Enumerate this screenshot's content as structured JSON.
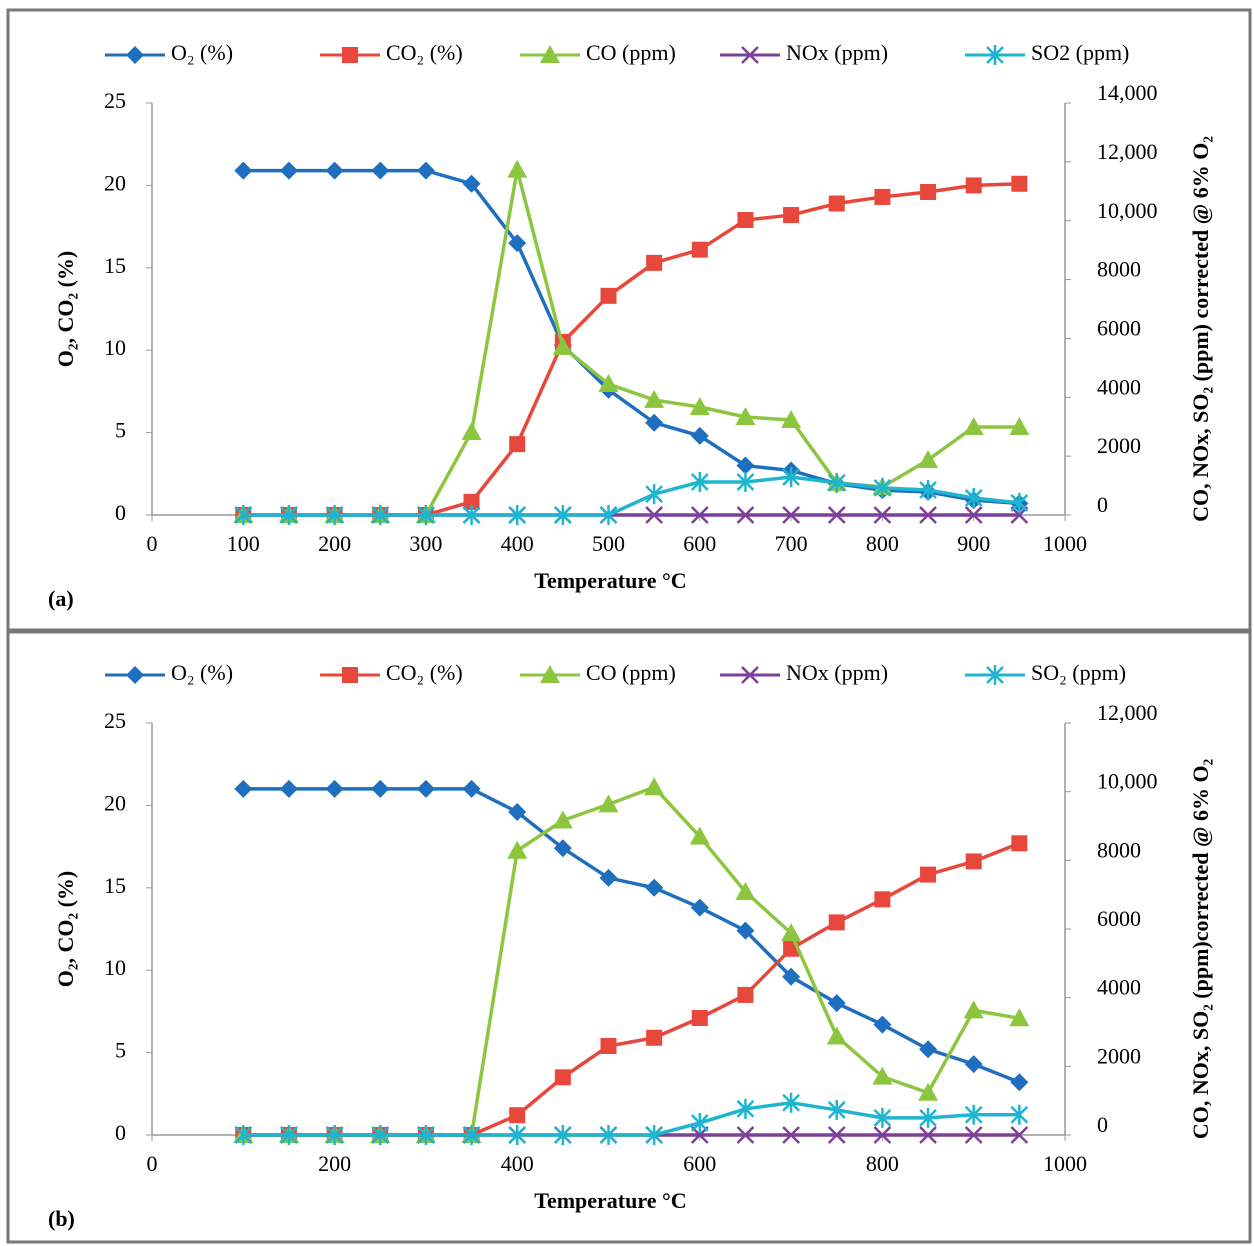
{
  "chart_data": [
    {
      "type": "line",
      "panel_label": "(a)",
      "x_label": "Temperature °C",
      "y_label": "O₂, CO₂ (%)",
      "y2_label": "CO, NOx, SO₂ (ppm) corrected @ 6% O₂",
      "x": [
        100,
        150,
        200,
        250,
        300,
        350,
        400,
        450,
        500,
        550,
        600,
        650,
        700,
        750,
        800,
        850,
        900,
        950
      ],
      "xlim": [
        0,
        1000
      ],
      "xticks": [
        0,
        100,
        200,
        300,
        400,
        500,
        600,
        700,
        800,
        900,
        1000
      ],
      "ylim": [
        0,
        25
      ],
      "yticks": [
        0,
        5,
        10,
        15,
        20,
        25
      ],
      "y2lim": [
        0,
        14000
      ],
      "y2ticks": [
        0,
        2000,
        4000,
        6000,
        8000,
        {
          "value": 10000,
          "label": "10,000"
        },
        {
          "value": 12000,
          "label": "12,000"
        },
        {
          "value": 14000,
          "label": "14,000"
        }
      ],
      "series": [
        {
          "name": "O₂ (%)",
          "color": "#1f6fbf",
          "marker": "diamond",
          "values": [
            20.9,
            20.9,
            20.9,
            20.9,
            20.9,
            20.1,
            16.5,
            10.3,
            7.6,
            5.6,
            4.8,
            3.0,
            2.7,
            1.9,
            1.5,
            1.4,
            0.9,
            0.7
          ]
        },
        {
          "name": "CO₂ (%)",
          "color": "#e8473b",
          "marker": "square",
          "values": [
            0,
            0,
            0,
            0,
            0,
            0.8,
            4.3,
            10.5,
            13.3,
            15.3,
            16.1,
            17.9,
            18.2,
            18.9,
            19.3,
            19.6,
            20.0,
            20.1
          ]
        },
        {
          "name": "CO (ppm)",
          "color": "#8cc63f",
          "marker": "triangle",
          "axis": "y2",
          "values": [
            0,
            0,
            0,
            0,
            0,
            2820,
            11730,
            5710,
            4450,
            3910,
            3670,
            3330,
            3230,
            1090,
            950,
            1870,
            2990,
            2990
          ]
        },
        {
          "name": "NOx (ppm)",
          "color": "#7d3f98",
          "marker": "x",
          "axis": "y2",
          "values": [
            0,
            0,
            0,
            0,
            0,
            0,
            0,
            0,
            0,
            0,
            0,
            0,
            0,
            0,
            0,
            0,
            0,
            0
          ]
        },
        {
          "name": "SO2 (ppm)",
          "color": "#1fb5d0",
          "marker": "star",
          "axis": "y2",
          "values": [
            0,
            0,
            0,
            0,
            0,
            0,
            0,
            0,
            0,
            710,
            1120,
            1120,
            1290,
            1090,
            920,
            850,
            580,
            410
          ]
        }
      ]
    },
    {
      "type": "line",
      "panel_label": "(b)",
      "x_label": "Temperature °C",
      "y_label": "O₂, CO₂ (%)",
      "y2_label": "CO, NOx, SO₂ (ppm)corrected @ 6% O₂",
      "x": [
        100,
        150,
        200,
        250,
        300,
        350,
        400,
        450,
        500,
        550,
        600,
        650,
        700,
        750,
        800,
        850,
        900,
        950
      ],
      "xlim": [
        0,
        1000
      ],
      "xticks": [
        0,
        200,
        400,
        600,
        800,
        1000
      ],
      "ylim": [
        0,
        25
      ],
      "yticks": [
        0,
        5,
        10,
        15,
        20,
        25
      ],
      "y2lim": [
        0,
        12000
      ],
      "y2ticks": [
        0,
        2000,
        4000,
        6000,
        8000,
        {
          "value": 10000,
          "label": "10,000"
        },
        {
          "value": 12000,
          "label": "12,000"
        }
      ],
      "series": [
        {
          "name": "O₂ (%)",
          "color": "#1f6fbf",
          "marker": "diamond",
          "values": [
            21,
            21,
            21,
            21,
            21,
            21,
            19.6,
            17.4,
            15.6,
            15.0,
            13.8,
            12.4,
            9.6,
            8.0,
            6.7,
            5.2,
            4.3,
            3.2
          ]
        },
        {
          "name": "CO₂ (%)",
          "color": "#e8473b",
          "marker": "square",
          "values": [
            0,
            0,
            0,
            0,
            0,
            0,
            1.2,
            3.5,
            5.4,
            5.9,
            7.1,
            8.5,
            11.3,
            12.9,
            14.3,
            15.8,
            16.6,
            17.7
          ]
        },
        {
          "name": "CO (ppm)",
          "color": "#8cc63f",
          "marker": "triangle",
          "axis": "y2",
          "values": [
            0,
            0,
            0,
            0,
            0,
            0,
            8280,
            9160,
            9630,
            10130,
            8690,
            7080,
            5880,
            2870,
            1700,
            1230,
            3630,
            3400
          ]
        },
        {
          "name": "NOx (ppm)",
          "color": "#7d3f98",
          "marker": "x",
          "axis": "y2",
          "values": [
            0,
            0,
            0,
            0,
            0,
            0,
            0,
            0,
            0,
            0,
            0,
            0,
            0,
            0,
            0,
            0,
            0,
            0
          ]
        },
        {
          "name": "SO₂ (ppm)",
          "color": "#1fb5d0",
          "marker": "star",
          "axis": "y2",
          "values": [
            0,
            0,
            0,
            0,
            0,
            0,
            0,
            0,
            0,
            0,
            350,
            760,
            940,
            730,
            500,
            500,
            590,
            590
          ]
        }
      ]
    }
  ]
}
